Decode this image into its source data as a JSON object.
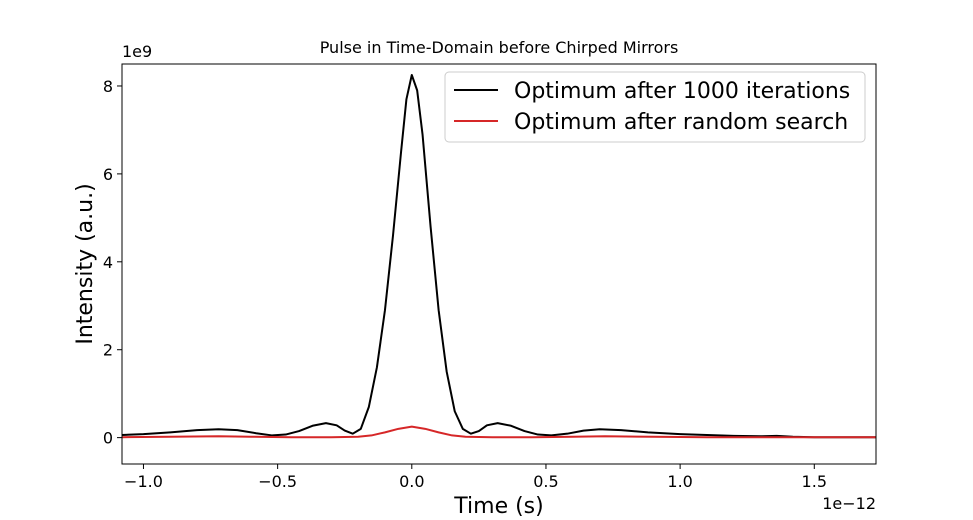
{
  "chart_data": {
    "type": "line",
    "title": "Pulse in Time-Domain before Chirped Mirrors",
    "xlabel": "Time (s)",
    "ylabel": "Intensity (a.u.)",
    "x_offset_text": "1e−12",
    "y_offset_text": "1e9",
    "xlim": [
      -1.08,
      1.73
    ],
    "ylim": [
      -0.6,
      8.5
    ],
    "x_ticks": [
      -1.0,
      -0.5,
      0.0,
      0.5,
      1.0,
      1.5
    ],
    "x_tick_labels": [
      "−1.0",
      "−0.5",
      "0.0",
      "0.5",
      "1.0",
      "1.5"
    ],
    "y_ticks": [
      0,
      2,
      4,
      6,
      8
    ],
    "y_tick_labels": [
      "0",
      "2",
      "4",
      "6",
      "8"
    ],
    "grid": false,
    "legend_position": "top-right",
    "series": [
      {
        "name": "Optimum after 1000 iterations",
        "color": "#000000",
        "points": [
          [
            -1.08,
            0.06
          ],
          [
            -1.0,
            0.08
          ],
          [
            -0.9,
            0.12
          ],
          [
            -0.8,
            0.17
          ],
          [
            -0.72,
            0.19
          ],
          [
            -0.65,
            0.17
          ],
          [
            -0.58,
            0.1
          ],
          [
            -0.52,
            0.05
          ],
          [
            -0.47,
            0.07
          ],
          [
            -0.42,
            0.15
          ],
          [
            -0.37,
            0.27
          ],
          [
            -0.32,
            0.33
          ],
          [
            -0.28,
            0.28
          ],
          [
            -0.25,
            0.16
          ],
          [
            -0.22,
            0.09
          ],
          [
            -0.19,
            0.2
          ],
          [
            -0.16,
            0.7
          ],
          [
            -0.13,
            1.6
          ],
          [
            -0.1,
            2.9
          ],
          [
            -0.07,
            4.6
          ],
          [
            -0.04,
            6.5
          ],
          [
            -0.02,
            7.7
          ],
          [
            0.0,
            8.25
          ],
          [
            0.02,
            7.9
          ],
          [
            0.04,
            6.9
          ],
          [
            0.07,
            4.8
          ],
          [
            0.1,
            2.9
          ],
          [
            0.13,
            1.5
          ],
          [
            0.16,
            0.6
          ],
          [
            0.19,
            0.2
          ],
          [
            0.22,
            0.09
          ],
          [
            0.25,
            0.15
          ],
          [
            0.28,
            0.28
          ],
          [
            0.32,
            0.33
          ],
          [
            0.37,
            0.27
          ],
          [
            0.42,
            0.15
          ],
          [
            0.47,
            0.07
          ],
          [
            0.52,
            0.05
          ],
          [
            0.58,
            0.09
          ],
          [
            0.64,
            0.16
          ],
          [
            0.7,
            0.19
          ],
          [
            0.78,
            0.17
          ],
          [
            0.88,
            0.12
          ],
          [
            1.0,
            0.08
          ],
          [
            1.1,
            0.06
          ],
          [
            1.2,
            0.04
          ],
          [
            1.3,
            0.03
          ],
          [
            1.36,
            0.04
          ],
          [
            1.42,
            0.02
          ],
          [
            1.5,
            0.01
          ],
          [
            1.6,
            0.01
          ],
          [
            1.73,
            0.01
          ]
        ]
      },
      {
        "name": "Optimum after random search",
        "color": "#d62728",
        "points": [
          [
            -1.08,
            0.01
          ],
          [
            -0.9,
            0.02
          ],
          [
            -0.72,
            0.03
          ],
          [
            -0.6,
            0.02
          ],
          [
            -0.45,
            0.01
          ],
          [
            -0.3,
            0.01
          ],
          [
            -0.2,
            0.02
          ],
          [
            -0.15,
            0.05
          ],
          [
            -0.1,
            0.12
          ],
          [
            -0.05,
            0.2
          ],
          [
            0.0,
            0.25
          ],
          [
            0.05,
            0.2
          ],
          [
            0.1,
            0.12
          ],
          [
            0.15,
            0.05
          ],
          [
            0.2,
            0.02
          ],
          [
            0.3,
            0.01
          ],
          [
            0.45,
            0.01
          ],
          [
            0.6,
            0.02
          ],
          [
            0.72,
            0.03
          ],
          [
            0.9,
            0.02
          ],
          [
            1.1,
            0.01
          ],
          [
            1.3,
            0.01
          ],
          [
            1.5,
            0.01
          ],
          [
            1.73,
            0.01
          ]
        ]
      }
    ]
  }
}
